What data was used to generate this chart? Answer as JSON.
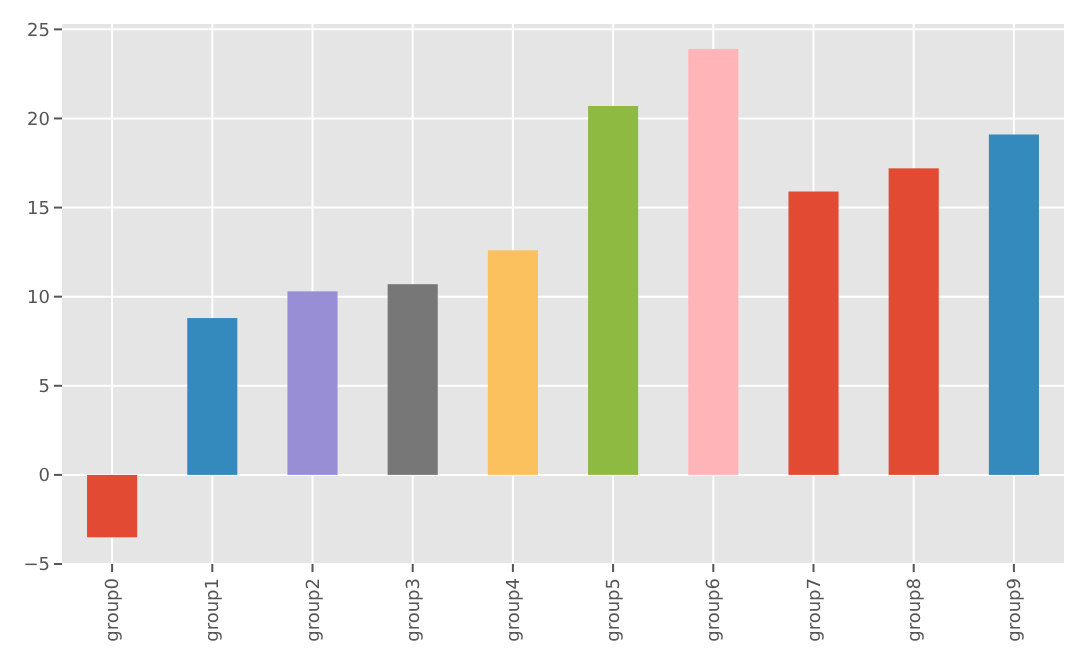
{
  "chart_data": {
    "type": "bar",
    "categories": [
      "group0",
      "group1",
      "group2",
      "group3",
      "group4",
      "group5",
      "group6",
      "group7",
      "group8",
      "group9"
    ],
    "values": [
      -3.5,
      8.8,
      10.3,
      10.7,
      12.6,
      20.7,
      23.9,
      15.9,
      17.2,
      19.1
    ],
    "colors": [
      "#e24a33",
      "#348abd",
      "#988ed5",
      "#777777",
      "#fbc15e",
      "#8eba42",
      "#ffb5b8",
      "#e24a33",
      "#e24a33",
      "#348abd"
    ],
    "ylim": [
      -5,
      25.3
    ],
    "yticks": [
      {
        "value": -5,
        "label": "−5"
      },
      0,
      5,
      10,
      15,
      20,
      25
    ],
    "grid": true
  }
}
